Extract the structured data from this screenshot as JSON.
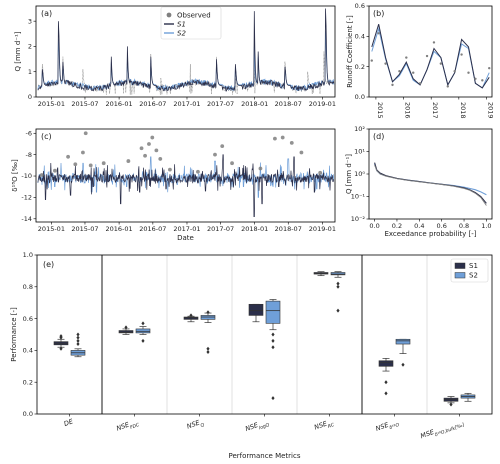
{
  "figure": {
    "background": "#ffffff",
    "colors": {
      "observed": "#7f7f7f",
      "s1": "#2b2f4a",
      "s2": "#6f9fd8"
    }
  },
  "chart_data": [
    {
      "panel": "(a)",
      "type": "line",
      "ylabel": "Q [mm d⁻¹]",
      "ylim": [
        0,
        3.6
      ],
      "yticks": [
        0,
        1,
        2,
        3
      ],
      "xticks": [
        "2015-01",
        "2015-07",
        "2016-01",
        "2016-07",
        "2017-01",
        "2017-07",
        "2018-01",
        "2018-07",
        "2019-01"
      ],
      "legend": {
        "placement": "top-center",
        "entries": [
          "Observed",
          "S1",
          "S2"
        ]
      },
      "series": [
        {
          "name": "Observed",
          "baseline": 0.45,
          "peaks": [
            [
              "2014-11-15",
              1.3
            ],
            [
              "2015-02-10",
              2.4
            ],
            [
              "2015-03-05",
              1.6
            ],
            [
              "2015-06-20",
              1.1
            ],
            [
              "2015-11-20",
              1.5
            ],
            [
              "2016-02-15",
              1.8
            ],
            [
              "2016-06-20",
              1.7
            ],
            [
              "2016-08-10",
              1.1
            ],
            [
              "2017-01-20",
              1.3
            ],
            [
              "2017-06-10",
              1.6
            ],
            [
              "2017-09-20",
              1.4
            ],
            [
              "2017-12-30",
              2.2
            ],
            [
              "2018-01-20",
              1.7
            ],
            [
              "2018-06-15",
              1.4
            ],
            [
              "2018-10-15",
              1.0
            ],
            [
              "2019-01-10",
              1.8
            ]
          ]
        },
        {
          "name": "S1",
          "baseline": 0.45,
          "peaks": [
            [
              "2014-11-15",
              1.1
            ],
            [
              "2015-02-10",
              3.0
            ],
            [
              "2015-03-05",
              1.4
            ],
            [
              "2015-11-20",
              1.6
            ],
            [
              "2016-02-15",
              2.0
            ],
            [
              "2016-06-20",
              1.6
            ],
            [
              "2017-06-10",
              1.5
            ],
            [
              "2017-09-20",
              1.3
            ],
            [
              "2017-12-30",
              3.4
            ],
            [
              "2018-01-20",
              1.8
            ],
            [
              "2018-06-15",
              1.2
            ],
            [
              "2019-01-20",
              3.5
            ]
          ]
        },
        {
          "name": "S2",
          "baseline": 0.48,
          "peaks": [
            [
              "2014-11-15",
              1.0
            ],
            [
              "2015-02-10",
              2.3
            ],
            [
              "2015-03-05",
              1.3
            ],
            [
              "2015-11-20",
              1.4
            ],
            [
              "2016-02-15",
              1.7
            ],
            [
              "2016-06-20",
              1.5
            ],
            [
              "2017-06-10",
              1.4
            ],
            [
              "2017-09-20",
              1.2
            ],
            [
              "2017-12-30",
              2.0
            ],
            [
              "2018-01-20",
              1.6
            ],
            [
              "2018-06-15",
              1.1
            ],
            [
              "2019-01-20",
              2.6
            ]
          ]
        }
      ]
    },
    {
      "panel": "(b)",
      "type": "line",
      "ylabel": "Runoff Coefficient [-]",
      "ylim": [
        0,
        0.6
      ],
      "yticks": [
        0.0,
        0.2,
        0.4,
        0.6
      ],
      "xticks": [
        "2015",
        "2016",
        "2017",
        "2018",
        "2019"
      ],
      "x": [
        2014.85,
        2015.1,
        2015.35,
        2015.6,
        2015.85,
        2016.1,
        2016.35,
        2016.6,
        2016.85,
        2017.1,
        2017.35,
        2017.6,
        2017.85,
        2018.1,
        2018.35,
        2018.6,
        2018.85,
        2019.1
      ],
      "series": [
        {
          "name": "Observed",
          "values": [
            0.24,
            0.42,
            0.22,
            0.08,
            0.17,
            0.26,
            0.16,
            0.09,
            0.27,
            0.36,
            0.22,
            0.07,
            0.17,
            0.28,
            0.16,
            0.12,
            0.11,
            0.19
          ]
        },
        {
          "name": "S1",
          "values": [
            0.33,
            0.48,
            0.26,
            0.1,
            0.15,
            0.23,
            0.12,
            0.08,
            0.18,
            0.32,
            0.26,
            0.08,
            0.16,
            0.38,
            0.33,
            0.09,
            0.06,
            0.13
          ]
        },
        {
          "name": "S2",
          "values": [
            0.3,
            0.45,
            0.25,
            0.1,
            0.14,
            0.22,
            0.11,
            0.08,
            0.18,
            0.3,
            0.26,
            0.08,
            0.16,
            0.35,
            0.32,
            0.09,
            0.06,
            0.16
          ]
        }
      ]
    },
    {
      "panel": "(c)",
      "type": "line",
      "xlabel": "Date",
      "ylabel": "δ¹⁸O [‰]",
      "ylim": [
        -14.3,
        -5.6
      ],
      "yticks": [
        -14,
        -12,
        -10,
        -8,
        -6
      ],
      "xticks": [
        "2015-01",
        "2015-07",
        "2016-01",
        "2016-07",
        "2017-01",
        "2017-07",
        "2018-01",
        "2018-07",
        "2019-01"
      ],
      "baseline": -10.2,
      "observed_points": [
        [
          "2014-11-10",
          -9.9
        ],
        [
          "2015-01-20",
          -9.5
        ],
        [
          "2015-04-01",
          -8.2
        ],
        [
          "2015-05-10",
          -8.9
        ],
        [
          "2015-06-20",
          -7.8
        ],
        [
          "2015-07-05",
          -6.0
        ],
        [
          "2015-08-01",
          -9.0
        ],
        [
          "2015-10-10",
          -8.8
        ],
        [
          "2016-02-20",
          -8.6
        ],
        [
          "2016-05-01",
          -7.4
        ],
        [
          "2016-05-20",
          -8.1
        ],
        [
          "2016-06-10",
          -7.0
        ],
        [
          "2016-06-28",
          -6.4
        ],
        [
          "2016-07-20",
          -7.6
        ],
        [
          "2016-08-10",
          -8.4
        ],
        [
          "2016-10-01",
          -9.4
        ],
        [
          "2017-03-01",
          -9.6
        ],
        [
          "2017-06-01",
          -8.0
        ],
        [
          "2017-07-10",
          -7.2
        ],
        [
          "2017-09-01",
          -8.8
        ],
        [
          "2018-02-01",
          -9.3
        ],
        [
          "2018-04-20",
          -6.5
        ],
        [
          "2018-06-01",
          -6.4
        ],
        [
          "2018-07-20",
          -6.9
        ],
        [
          "2018-09-10",
          -7.8
        ],
        [
          "2018-12-20",
          -9.7
        ]
      ],
      "s1_spikes": [
        [
          "2014-12-01",
          -12.2
        ],
        [
          "2015-04-15",
          -11.8
        ],
        [
          "2015-08-15",
          -11.0
        ],
        [
          "2016-01-10",
          -12.6
        ],
        [
          "2016-04-20",
          -11.5
        ],
        [
          "2016-09-10",
          -11.2
        ],
        [
          "2017-04-10",
          -11.4
        ],
        [
          "2017-07-15",
          -8.0
        ],
        [
          "2017-12-30",
          -13.8
        ],
        [
          "2018-02-10",
          -12.6
        ],
        [
          "2018-05-10",
          -11.0
        ],
        [
          "2018-08-01",
          -8.2
        ],
        [
          "2018-11-20",
          -11.5
        ]
      ],
      "s2_spikes": [
        [
          "2015-01-20",
          -11.0
        ],
        [
          "2015-06-20",
          -8.8
        ],
        [
          "2015-09-01",
          -11.5
        ],
        [
          "2016-02-10",
          -11.0
        ],
        [
          "2016-06-20",
          -8.2
        ],
        [
          "2016-11-10",
          -10.8
        ],
        [
          "2017-06-01",
          -8.6
        ],
        [
          "2017-11-01",
          -11.0
        ],
        [
          "2018-01-20",
          -12.0
        ],
        [
          "2018-07-01",
          -8.4
        ],
        [
          "2018-12-01",
          -11.2
        ]
      ]
    },
    {
      "panel": "(d)",
      "type": "line",
      "xlabel": "Exceedance probability [-]",
      "ylabel": "Q [mm d⁻¹]",
      "yscale": "log",
      "ylim": [
        0.01,
        100
      ],
      "yticks": [
        "10⁻²",
        "10⁻¹",
        "10⁰",
        "10¹",
        "10²"
      ],
      "xlim": [
        0,
        1
      ],
      "xticks": [
        "0.0",
        "0.2",
        "0.4",
        "0.6",
        "0.8",
        "1.0"
      ],
      "series": [
        {
          "name": "Observed",
          "x": [
            0,
            0.02,
            0.05,
            0.1,
            0.2,
            0.3,
            0.4,
            0.5,
            0.6,
            0.7,
            0.8,
            0.85,
            0.9,
            0.95,
            1.0
          ],
          "values": [
            2.5,
            1.4,
            1.0,
            0.8,
            0.62,
            0.52,
            0.45,
            0.39,
            0.34,
            0.29,
            0.23,
            0.19,
            0.14,
            0.09,
            0.04
          ]
        },
        {
          "name": "S1",
          "x": [
            0,
            0.02,
            0.05,
            0.1,
            0.2,
            0.3,
            0.4,
            0.5,
            0.6,
            0.7,
            0.8,
            0.85,
            0.9,
            0.95,
            1.0
          ],
          "values": [
            3.2,
            1.5,
            1.1,
            0.85,
            0.64,
            0.53,
            0.46,
            0.4,
            0.35,
            0.3,
            0.24,
            0.2,
            0.15,
            0.1,
            0.05
          ]
        },
        {
          "name": "S2",
          "x": [
            0,
            0.02,
            0.05,
            0.1,
            0.2,
            0.3,
            0.4,
            0.5,
            0.6,
            0.7,
            0.8,
            0.85,
            0.9,
            0.95,
            1.0
          ],
          "values": [
            2.8,
            1.4,
            1.0,
            0.82,
            0.63,
            0.53,
            0.46,
            0.4,
            0.35,
            0.31,
            0.26,
            0.23,
            0.2,
            0.16,
            0.12
          ]
        }
      ]
    },
    {
      "panel": "(e)",
      "type": "box",
      "xlabel": "Performance Metrics",
      "ylabel": "Performance [-]",
      "ylim": [
        0,
        1.0
      ],
      "yticks": [
        "0.0",
        "0.2",
        "0.4",
        "0.6",
        "0.8",
        "1.0"
      ],
      "legend": {
        "placement": "top-right",
        "entries": [
          "S1",
          "S2"
        ]
      },
      "separators_after": [
        0,
        4
      ],
      "categories": [
        {
          "label": "DE"
        },
        {
          "label": "NSE",
          "sub": "FDC"
        },
        {
          "label": "NSE",
          "sub": "Q"
        },
        {
          "label": "NSE",
          "sub": "logQ"
        },
        {
          "label": "NSE",
          "sub": "RC"
        },
        {
          "label": "NSE",
          "sub": "δ¹⁸O"
        },
        {
          "label": "MSE",
          "sub": "δ¹⁸O,bulk[‰]"
        }
      ],
      "series": [
        {
          "name": "S1",
          "boxes": [
            {
              "whislo": 0.42,
              "q1": 0.435,
              "med": 0.445,
              "q3": 0.455,
              "whishi": 0.47,
              "fliers": [
                0.48,
                0.49,
                0.41
              ]
            },
            {
              "whislo": 0.5,
              "q1": 0.51,
              "med": 0.515,
              "q3": 0.525,
              "whishi": 0.535,
              "fliers": [
                0.545
              ]
            },
            {
              "whislo": 0.58,
              "q1": 0.595,
              "med": 0.605,
              "q3": 0.61,
              "whishi": 0.615,
              "fliers": [
                0.62
              ]
            },
            {
              "whislo": 0.58,
              "q1": 0.62,
              "med": 0.65,
              "q3": 0.69,
              "whishi": 0.69,
              "fliers": []
            },
            {
              "whislo": 0.87,
              "q1": 0.88,
              "med": 0.885,
              "q3": 0.89,
              "whishi": 0.895,
              "fliers": []
            },
            {
              "whislo": 0.27,
              "q1": 0.3,
              "med": 0.325,
              "q3": 0.335,
              "whishi": 0.35,
              "fliers": [
                0.2,
                0.13
              ]
            },
            {
              "whislo": 0.07,
              "q1": 0.08,
              "med": 0.09,
              "q3": 0.1,
              "whishi": 0.11,
              "fliers": [
                0.06
              ]
            }
          ]
        },
        {
          "name": "S2",
          "boxes": [
            {
              "whislo": 0.36,
              "q1": 0.37,
              "med": 0.385,
              "q3": 0.4,
              "whishi": 0.41,
              "fliers": [
                0.5,
                0.48,
                0.46,
                0.44
              ]
            },
            {
              "whislo": 0.5,
              "q1": 0.51,
              "med": 0.52,
              "q3": 0.535,
              "whishi": 0.55,
              "fliers": [
                0.57,
                0.46
              ]
            },
            {
              "whislo": 0.575,
              "q1": 0.595,
              "med": 0.61,
              "q3": 0.62,
              "whishi": 0.635,
              "fliers": [
                0.39,
                0.41,
                0.64
              ]
            },
            {
              "whislo": 0.53,
              "q1": 0.57,
              "med": 0.65,
              "q3": 0.71,
              "whishi": 0.72,
              "fliers": [
                0.5,
                0.46,
                0.42,
                0.1
              ]
            },
            {
              "whislo": 0.86,
              "q1": 0.875,
              "med": 0.88,
              "q3": 0.89,
              "whishi": 0.895,
              "fliers": [
                0.82,
                0.8,
                0.65
              ]
            },
            {
              "whislo": 0.38,
              "q1": 0.44,
              "med": 0.46,
              "q3": 0.47,
              "whishi": 0.47,
              "fliers": [
                0.31
              ]
            },
            {
              "whislo": 0.08,
              "q1": 0.1,
              "med": 0.11,
              "q3": 0.12,
              "whishi": 0.13,
              "fliers": []
            }
          ]
        }
      ]
    }
  ]
}
